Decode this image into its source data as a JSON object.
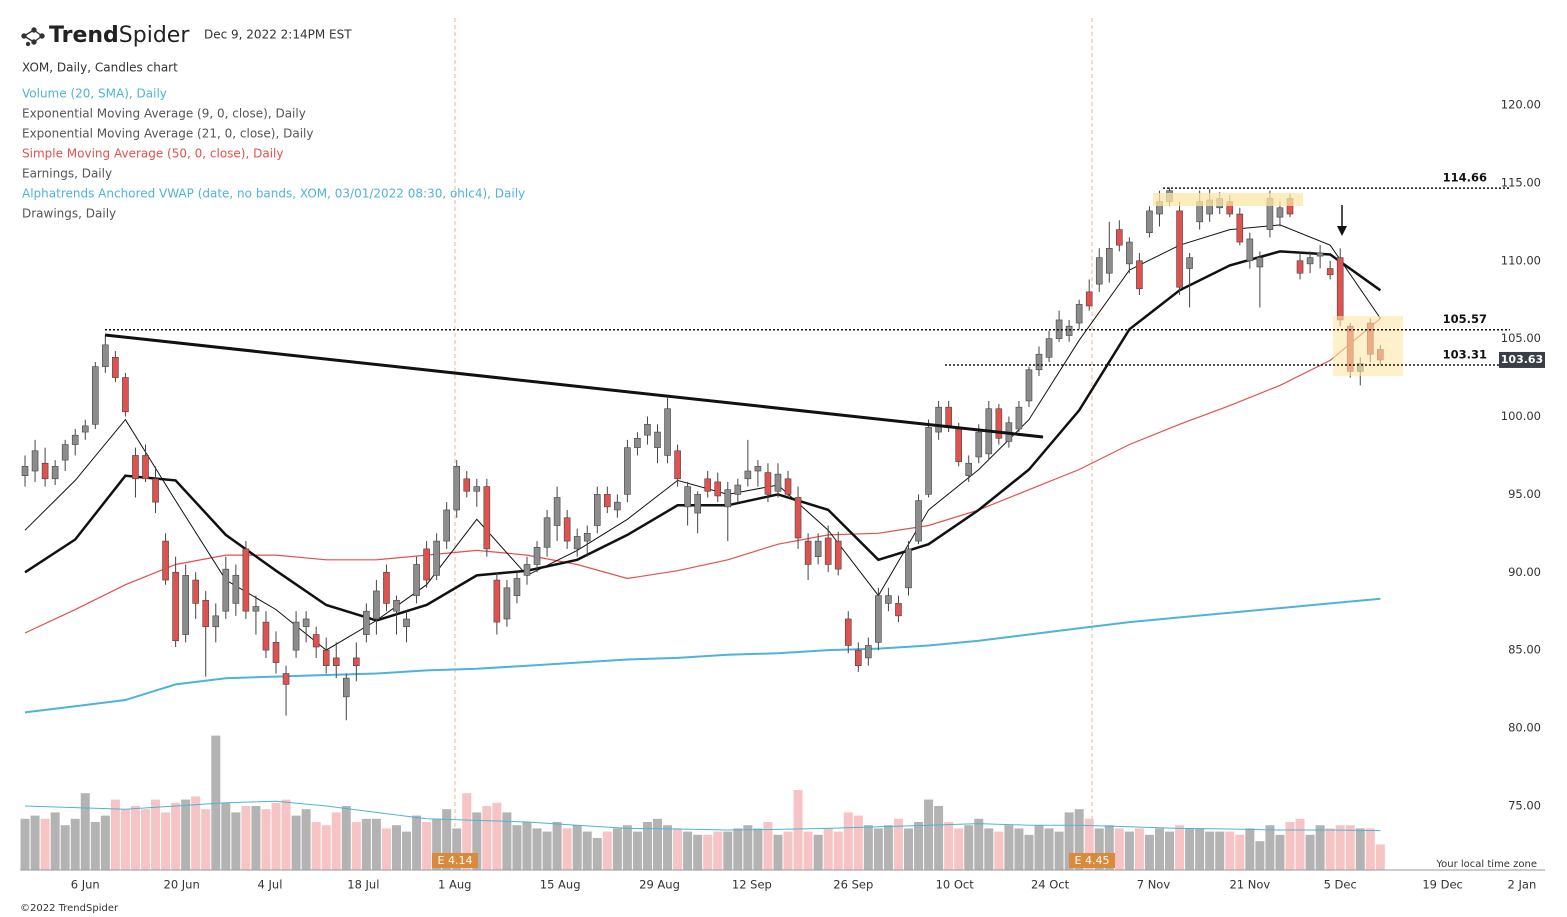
{
  "header": {
    "logo_bold": "Trend",
    "logo_rest": "Spider",
    "timestamp": "Dec 9, 2022 2:14PM EST",
    "symbol": "XOM, Daily, Candles chart"
  },
  "legend": [
    {
      "text": "Volume (20, SMA), Daily",
      "color": "#4fb3d9"
    },
    {
      "text": "Exponential Moving Average (9, 0, close), Daily",
      "color": "#555555"
    },
    {
      "text": "Exponential Moving Average (21, 0, close), Daily",
      "color": "#555555"
    },
    {
      "text": "Simple Moving Average (50, 0, close), Daily",
      "color": "#e0524f"
    },
    {
      "text": "Earnings, Daily",
      "color": "#555555"
    },
    {
      "text": "Alphatrends Anchored VWAP (date, no bands, XOM, 03/01/2022 08:30, ohlc4), Daily",
      "color": "#4fb3d9"
    },
    {
      "text": "Drawings, Daily",
      "color": "#555555"
    }
  ],
  "footer": "©2022 TrendSpider",
  "timezone": "Your local time zone",
  "chart_data": {
    "type": "candlestick",
    "up_color": "#8c8c8c",
    "down_color": "#e0524f",
    "vol_up_color": "#b3b3b3",
    "vol_down_color": "#f6c4c4",
    "xlim": [
      -0.5,
      151.4
    ],
    "xticks": [
      {
        "value": 6,
        "label": "6 Jun"
      },
      {
        "value": 15.6,
        "label": "20 Jun"
      },
      {
        "value": 24.4,
        "label": "4 Jul"
      },
      {
        "value": 33.7,
        "label": "18 Jul"
      },
      {
        "value": 42.8,
        "label": "1 Aug"
      },
      {
        "value": 53.3,
        "label": "15 Aug"
      },
      {
        "value": 63.2,
        "label": "29 Aug"
      },
      {
        "value": 72.4,
        "label": "12 Sep"
      },
      {
        "value": 82.5,
        "label": "26 Sep"
      },
      {
        "value": 92.6,
        "label": "10 Oct"
      },
      {
        "value": 102.1,
        "label": "24 Oct"
      },
      {
        "value": 112.4,
        "label": "7 Nov"
      },
      {
        "value": 122,
        "label": "21 Nov"
      },
      {
        "value": 131,
        "label": "5 Dec"
      },
      {
        "value": 141.2,
        "label": "19 Dec"
      },
      {
        "value": 149.1,
        "label": "2 Jan"
      }
    ],
    "ylim": [
      72.7,
      123.9
    ],
    "yticks": [
      {
        "value": 120,
        "label": "120.00"
      },
      {
        "value": 115,
        "label": "115.00"
      },
      {
        "value": 110,
        "label": "110.00"
      },
      {
        "value": 105,
        "label": "105.00"
      },
      {
        "value": 100,
        "label": "100.00"
      },
      {
        "value": 95,
        "label": "95.00"
      },
      {
        "value": 90,
        "label": "90.00"
      },
      {
        "value": 85,
        "label": "85.00"
      },
      {
        "value": 80,
        "label": "80.00"
      },
      {
        "value": 75,
        "label": "75.00"
      }
    ],
    "ohlc": [
      [
        96.2,
        97.5,
        95.5,
        96.8
      ],
      [
        96.5,
        98.5,
        95.8,
        97.8
      ],
      [
        97,
        98,
        95.5,
        96
      ],
      [
        96,
        97.2,
        95.6,
        96.8
      ],
      [
        97.2,
        98.5,
        96.5,
        98.2
      ],
      [
        98.2,
        99.2,
        97.5,
        98.8
      ],
      [
        99,
        99.8,
        98.5,
        99.4
      ],
      [
        99.5,
        103.5,
        99.2,
        103.2
      ],
      [
        103.2,
        105.2,
        102.8,
        104.6
      ],
      [
        103.8,
        104.2,
        102.2,
        102.5
      ],
      [
        102.5,
        102.8,
        100,
        100.3
      ],
      [
        97.5,
        98,
        94.8,
        96
      ],
      [
        97.5,
        98.2,
        95.8,
        96
      ],
      [
        96,
        96.8,
        93.8,
        94.5
      ],
      [
        92,
        92.5,
        89.2,
        89.5
      ],
      [
        90,
        91,
        85.2,
        85.6
      ],
      [
        86,
        90.5,
        85.5,
        89.8
      ],
      [
        89.5,
        90,
        87,
        88
      ],
      [
        88.2,
        88.8,
        83.3,
        86.5
      ],
      [
        86.5,
        88,
        85.5,
        87.2
      ],
      [
        87.5,
        91,
        87,
        90.2
      ],
      [
        88,
        90.5,
        87.2,
        89.8
      ],
      [
        91.5,
        92,
        87,
        87.5
      ],
      [
        87.5,
        88.5,
        86,
        87.8
      ],
      [
        86.8,
        87.5,
        84.5,
        85
      ],
      [
        85.5,
        86.2,
        83.5,
        84.2
      ],
      [
        83.5,
        84,
        80.8,
        82.8
      ],
      [
        85,
        87.5,
        84.5,
        86.8
      ],
      [
        86.5,
        87.5,
        85.5,
        87
      ],
      [
        86,
        86.5,
        84.5,
        85.2
      ],
      [
        85,
        85.8,
        83.5,
        84
      ],
      [
        84.5,
        85.5,
        83.2,
        84
      ],
      [
        82,
        83.5,
        80.5,
        83.2
      ],
      [
        84.5,
        85.5,
        83,
        84
      ],
      [
        86,
        88,
        85.5,
        87.5
      ],
      [
        87,
        89.5,
        86,
        88.8
      ],
      [
        90,
        90.5,
        87.5,
        88
      ],
      [
        87.5,
        88.5,
        86,
        88.2
      ],
      [
        86.5,
        87.5,
        85.5,
        87
      ],
      [
        88.5,
        91,
        88,
        90.5
      ],
      [
        91.5,
        92,
        89,
        89.5
      ],
      [
        89.8,
        92.5,
        89.5,
        92
      ],
      [
        92,
        94.5,
        91.5,
        94
      ],
      [
        94,
        97.2,
        93.5,
        96.8
      ],
      [
        96,
        96.5,
        94.8,
        95.2
      ],
      [
        95.2,
        96,
        94.2,
        95.5
      ],
      [
        95.5,
        96,
        91,
        91.5
      ],
      [
        89.5,
        90,
        86,
        86.8
      ],
      [
        87,
        89.5,
        86.5,
        89
      ],
      [
        88.5,
        90,
        88,
        89.6
      ],
      [
        89.8,
        91,
        89.2,
        90.5
      ],
      [
        90.5,
        92,
        90,
        91.6
      ],
      [
        91.6,
        94,
        91,
        93.5
      ],
      [
        93,
        95.5,
        92,
        94.8
      ],
      [
        93.5,
        94,
        91.5,
        92
      ],
      [
        91.5,
        92.8,
        91,
        92.3
      ],
      [
        92,
        93,
        91,
        92.5
      ],
      [
        93,
        95.5,
        92.5,
        95
      ],
      [
        95,
        95.5,
        93.8,
        94.2
      ],
      [
        94,
        95,
        93.5,
        94.5
      ],
      [
        95,
        98.5,
        94.5,
        98
      ],
      [
        98,
        99,
        97.5,
        98.6
      ],
      [
        98.8,
        100,
        98.2,
        99.5
      ],
      [
        98,
        99.5,
        97,
        99
      ],
      [
        97.5,
        101.2,
        97,
        100.5
      ],
      [
        97.8,
        98.2,
        95.5,
        96
      ],
      [
        94.2,
        95.8,
        93,
        95.5
      ],
      [
        93.8,
        95.2,
        92.5,
        95
      ],
      [
        96,
        96.5,
        94.8,
        95.2
      ],
      [
        95.8,
        96.4,
        94.5,
        94.9
      ],
      [
        94.2,
        95.8,
        92,
        95.3
      ],
      [
        95,
        96,
        94.5,
        95.6
      ],
      [
        96,
        98.5,
        95.5,
        96.5
      ],
      [
        96.5,
        97.2,
        95.5,
        96.8
      ],
      [
        96.4,
        97,
        94.5,
        95
      ],
      [
        95.2,
        97,
        94.8,
        96.3
      ],
      [
        96,
        96.5,
        94.8,
        95
      ],
      [
        94.8,
        95.5,
        91.5,
        92.2
      ],
      [
        92,
        92.5,
        89.5,
        90.5
      ],
      [
        91,
        92.5,
        90.5,
        92
      ],
      [
        92.2,
        93,
        90,
        90.5
      ],
      [
        92,
        92.6,
        89.8,
        90.2
      ],
      [
        87,
        87.5,
        84.8,
        85.3
      ],
      [
        85,
        85.5,
        83.6,
        84
      ],
      [
        84.5,
        85.8,
        84,
        85.3
      ],
      [
        85.5,
        89,
        85,
        88.5
      ],
      [
        88,
        89,
        87.5,
        88.5
      ],
      [
        88,
        88.5,
        86.8,
        87.2
      ],
      [
        89,
        92,
        88.5,
        91.5
      ],
      [
        92,
        95,
        91.8,
        94.6
      ],
      [
        95,
        99.8,
        94.8,
        99.3
      ],
      [
        99,
        101,
        98.5,
        100.6
      ],
      [
        100.6,
        101,
        99,
        99.4
      ],
      [
        99.2,
        99.6,
        96.8,
        97.1
      ],
      [
        96.2,
        97.5,
        95.8,
        97
      ],
      [
        97.4,
        99.5,
        97,
        99
      ],
      [
        97.6,
        101,
        97.2,
        100.5
      ],
      [
        100.5,
        100.8,
        98.2,
        98.6
      ],
      [
        98.4,
        100,
        98,
        99.6
      ],
      [
        99.2,
        101,
        99,
        100.6
      ],
      [
        101,
        103.2,
        100.6,
        103
      ],
      [
        103,
        104.5,
        102.6,
        104
      ],
      [
        103.8,
        105.5,
        103.5,
        105
      ],
      [
        105,
        106.8,
        104.8,
        106.2
      ],
      [
        105.2,
        106.2,
        104.8,
        105.8
      ],
      [
        106,
        107.5,
        105.6,
        107.2
      ],
      [
        108,
        108.8,
        106.8,
        107.1
      ],
      [
        108.5,
        110.8,
        108,
        110.2
      ],
      [
        109.2,
        112.5,
        108.6,
        110.8
      ],
      [
        112,
        112.6,
        110.6,
        111
      ],
      [
        109.8,
        111.5,
        109.2,
        111.2
      ],
      [
        110,
        110.5,
        107.8,
        108.2
      ],
      [
        111.8,
        113.5,
        111.5,
        113.2
      ],
      [
        113,
        114.5,
        112.2,
        113.8
      ],
      [
        113.8,
        114.7,
        113.5,
        114.5
      ],
      [
        113.2,
        113.8,
        107.8,
        108.3
      ],
      [
        109.5,
        110.5,
        107,
        110.2
      ],
      [
        112.5,
        114.5,
        112,
        113.8
      ],
      [
        113,
        114.6,
        112.5,
        113.9
      ],
      [
        113.4,
        114.4,
        113,
        114
      ],
      [
        113.8,
        114.2,
        112.8,
        113
      ],
      [
        113,
        113.4,
        111,
        111.2
      ],
      [
        110,
        111.8,
        109.5,
        111.4
      ],
      [
        109.6,
        110.6,
        107,
        110.2
      ],
      [
        112,
        114.5,
        111.5,
        114
      ],
      [
        112.8,
        113.8,
        112.2,
        113.4
      ],
      [
        114,
        114.3,
        112.8,
        113
      ],
      [
        110,
        110.5,
        108.8,
        109.2
      ],
      [
        109.8,
        110.6,
        109.2,
        110.2
      ],
      [
        110.3,
        111,
        109.5,
        110.5
      ],
      [
        109.5,
        110,
        108.8,
        109.1
      ],
      [
        110.2,
        110.8,
        105.8,
        106.2
      ],
      [
        105.8,
        106,
        102.5,
        102.9
      ],
      [
        102.9,
        103.8,
        102,
        103.4
      ],
      [
        106,
        106.3,
        103.5,
        104
      ],
      [
        104.3,
        104.6,
        103.3,
        103.63
      ]
    ],
    "volume": [
      16,
      17,
      16,
      18,
      14,
      16,
      24,
      15,
      17,
      22,
      19,
      20,
      19,
      22,
      18,
      21,
      22,
      23,
      19,
      42,
      21,
      18,
      20,
      20,
      19,
      21,
      22,
      17,
      19,
      15,
      14,
      18,
      20,
      15,
      16,
      16,
      13,
      14,
      12,
      17,
      15,
      16,
      19,
      13,
      24,
      18,
      20,
      21,
      18,
      14,
      15,
      13,
      12,
      15,
      13,
      14,
      12,
      10,
      12,
      13,
      14,
      12,
      15,
      16,
      14,
      13,
      12,
      11,
      11,
      12,
      12,
      13,
      14,
      13,
      15,
      11,
      12,
      25,
      12,
      11,
      13,
      12,
      18,
      17,
      14,
      13,
      14,
      16,
      13,
      15,
      22,
      20,
      15,
      13,
      14,
      16,
      13,
      12,
      14,
      13,
      11,
      14,
      13,
      12,
      18,
      19,
      16,
      13,
      14,
      13,
      12,
      13,
      11,
      13,
      12,
      14,
      13,
      13,
      12,
      12,
      12,
      11,
      13,
      9,
      14,
      11,
      15,
      16,
      11,
      14,
      13,
      14,
      14,
      13,
      13,
      8
    ],
    "ma_x": [
      0,
      5,
      10,
      15,
      20,
      25,
      30,
      35,
      40,
      45,
      50,
      55,
      60,
      65,
      70,
      75,
      80,
      85,
      90,
      95,
      100,
      105,
      110,
      115,
      120,
      125,
      130,
      135
    ],
    "lines": [
      {
        "color": "#4fb3d9",
        "width": 2,
        "values": [
          81,
          81.4,
          81.8,
          82.8,
          83.2,
          83.3,
          83.4,
          83.5,
          83.7,
          83.8,
          84,
          84.2,
          84.4,
          84.5,
          84.7,
          84.8,
          85,
          85.1,
          85.3,
          85.6,
          86,
          86.4,
          86.8,
          87.1,
          87.4,
          87.7,
          88,
          88.3
        ]
      },
      {
        "color": "#e0524f",
        "width": 1.2,
        "values": [
          86.1,
          87.6,
          89.2,
          90.5,
          91.1,
          91.1,
          90.8,
          90.8,
          91.1,
          91.4,
          91.1,
          90.5,
          89.6,
          90.1,
          90.8,
          91.8,
          92.4,
          92.5,
          93,
          94,
          95.3,
          96.6,
          98.2,
          99.5,
          100.7,
          102,
          103.6,
          106.3
        ]
      },
      {
        "color": "#111111",
        "width": 2.5,
        "values": [
          90,
          92.1,
          96.2,
          95.9,
          92.4,
          90.1,
          87.9,
          86.9,
          87.9,
          89.8,
          90.1,
          90.8,
          92.4,
          94.3,
          94.3,
          95,
          94,
          90.8,
          91.8,
          94,
          96.6,
          100.4,
          105.6,
          108.1,
          109.7,
          110.6,
          110.4,
          108.1
        ]
      },
      {
        "color": "#111111",
        "width": 1,
        "values": [
          92.7,
          95.9,
          99.8,
          94.6,
          89.5,
          87.6,
          85,
          86.9,
          89.2,
          93.4,
          89.8,
          91.4,
          93.4,
          95.9,
          95,
          95.6,
          92.7,
          88.5,
          94,
          96.6,
          99.8,
          104.9,
          109.4,
          111,
          112,
          112.3,
          111,
          106.3
        ]
      }
    ],
    "volume_sma": {
      "color": "#4fb3d9",
      "values": [
        20,
        19.5,
        19,
        20,
        21,
        21.5,
        20,
        18,
        16,
        15.5,
        15,
        14,
        13,
        12.8,
        12.5,
        12.7,
        13,
        13.5,
        14,
        14.5,
        14,
        14,
        13.5,
        13,
        12.8,
        12.5,
        12.5,
        12.3
      ]
    },
    "levels": [
      114.66,
      105.57,
      103.31
    ],
    "last_price": 103.63,
    "earnings": [
      "E 4.14",
      "E 4.45"
    ]
  }
}
